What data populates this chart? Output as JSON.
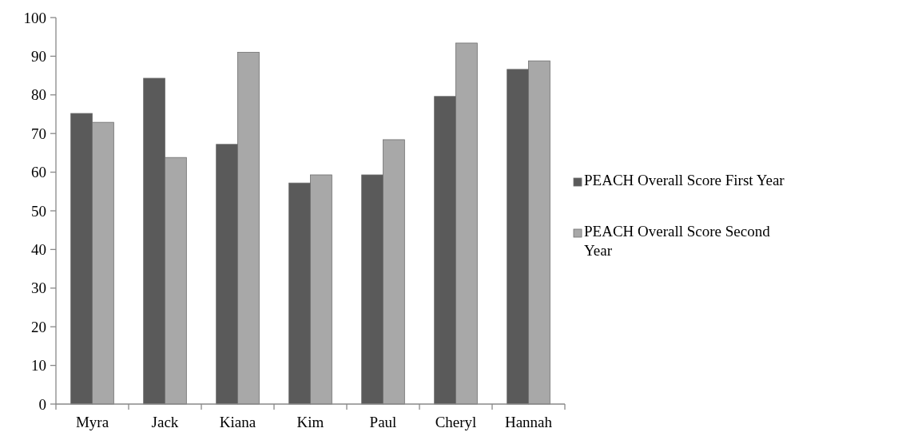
{
  "chart_data": {
    "type": "bar",
    "categories": [
      "Myra",
      "Jack",
      "Kiana",
      "Kim",
      "Paul",
      "Cheryl",
      "Hannah"
    ],
    "series": [
      {
        "name": "PEACH Overall Score First Year",
        "color": "#5a5a5a",
        "values": [
          75.2,
          84.3,
          67.2,
          57.2,
          59.3,
          79.6,
          86.6
        ]
      },
      {
        "name": "PEACH Overall Score Second Year",
        "color": "#a8a8a8",
        "values": [
          72.9,
          63.8,
          91,
          59.3,
          68.4,
          93.4,
          88.8
        ]
      }
    ],
    "ylim": [
      0,
      100
    ],
    "yticks": [
      0,
      10,
      20,
      30,
      40,
      50,
      60,
      70,
      80,
      90,
      100
    ],
    "grid": false,
    "legend": "right"
  }
}
